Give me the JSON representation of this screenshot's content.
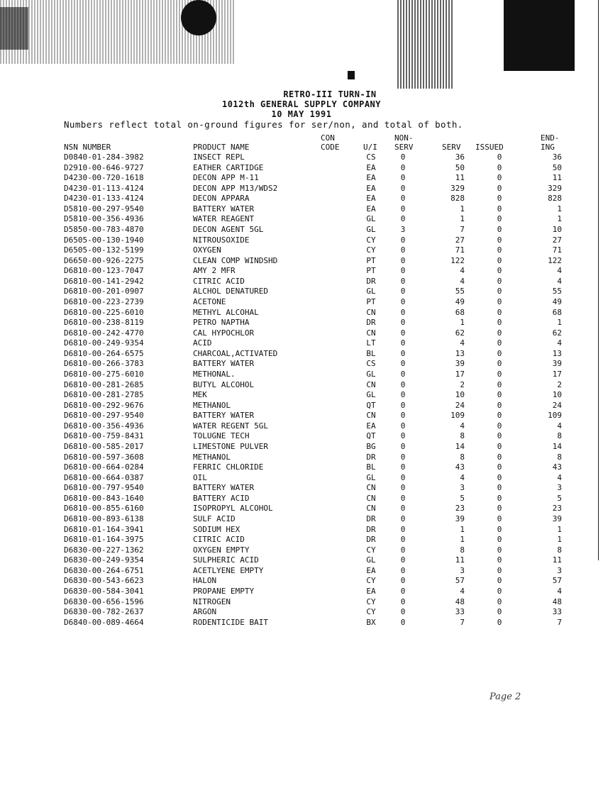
{
  "header": {
    "line1": "RETRO-III TURN-IN",
    "line2": "1012th GENERAL SUPPLY COMPANY",
    "line3": "10 MAY 1991"
  },
  "note": "Numbers reflect total on-ground figures for ser/non, and total of both.",
  "columns": {
    "nsn": "NSN NUMBER",
    "name": "PRODUCT NAME",
    "con_code": [
      "CON",
      "CODE"
    ],
    "ui": "U/I",
    "non_serv": [
      "NON-",
      "SERV"
    ],
    "serv": "SERV",
    "issued": "ISSUED",
    "ending": [
      "END-",
      "ING"
    ]
  },
  "rows": [
    [
      "D0840-01-284-3982",
      "INSECT REPL",
      "CS",
      "0",
      "36",
      "0",
      "36"
    ],
    [
      "D2910-00-646-9727",
      "EATHER CARTIDGE",
      "EA",
      "0",
      "50",
      "0",
      "50"
    ],
    [
      "D4230-00-720-1618",
      "DECON APP M-11",
      "EA",
      "0",
      "11",
      "0",
      "11"
    ],
    [
      "D4230-01-113-4124",
      "DECON APP M13/WDS2",
      "EA",
      "0",
      "329",
      "0",
      "329"
    ],
    [
      "D4230-01-133-4124",
      "DECON APPARA",
      "EA",
      "0",
      "828",
      "0",
      "828"
    ],
    [
      "D5810-00-297-9540",
      "BATTERY WATER",
      "EA",
      "0",
      "1",
      "0",
      "1"
    ],
    [
      "D5810-00-356-4936",
      "WATER REAGENT",
      "GL",
      "0",
      "1",
      "0",
      "1"
    ],
    [
      "D5850-00-783-4870",
      "DECON AGENT 5GL",
      "GL",
      "3",
      "7",
      "0",
      "10"
    ],
    [
      "D6505-00-130-1940",
      "NITROUSOXIDE",
      "CY",
      "0",
      "27",
      "0",
      "27"
    ],
    [
      "D6505-00-132-5199",
      "OXYGEN",
      "CY",
      "0",
      "71",
      "0",
      "71"
    ],
    [
      "D6650-00-926-2275",
      "CLEAN COMP WINDSHD",
      "PT",
      "0",
      "122",
      "0",
      "122"
    ],
    [
      "D6810-00-123-7047",
      "AMY 2 MFR",
      "PT",
      "0",
      "4",
      "0",
      "4"
    ],
    [
      "D6810-00-141-2942",
      "CITRIC ACID",
      "DR",
      "0",
      "4",
      "0",
      "4"
    ],
    [
      "D6810-00-201-0907",
      "ALCHOL DENATURED",
      "GL",
      "0",
      "55",
      "0",
      "55"
    ],
    [
      "D6810-00-223-2739",
      "ACETONE",
      "PT",
      "0",
      "49",
      "0",
      "49"
    ],
    [
      "D6810-00-225-6010",
      "METHYL ALCOHAL",
      "CN",
      "0",
      "68",
      "0",
      "68"
    ],
    [
      "D6810-00-238-8119",
      "PETRO NAPTHA",
      "DR",
      "0",
      "1",
      "0",
      "1"
    ],
    [
      "D6810-00-242-4770",
      "CAL HYPOCHLOR",
      "CN",
      "0",
      "62",
      "0",
      "62"
    ],
    [
      "D6810-00-249-9354",
      "ACID",
      "LT",
      "0",
      "4",
      "0",
      "4"
    ],
    [
      "D6810-00-264-6575",
      "CHARCOAL,ACTIVATED",
      "BL",
      "0",
      "13",
      "0",
      "13"
    ],
    [
      "D6810-00-266-3783",
      "BATTERY WATER",
      "CS",
      "0",
      "39",
      "0",
      "39"
    ],
    [
      "D6810-00-275-6010",
      "METHONAL.",
      "GL",
      "0",
      "17",
      "0",
      "17"
    ],
    [
      "D6810-00-281-2685",
      "BUTYL ALCOHOL",
      "CN",
      "0",
      "2",
      "0",
      "2"
    ],
    [
      "D6810-00-281-2785",
      "MEK",
      "GL",
      "0",
      "10",
      "0",
      "10"
    ],
    [
      "D6810-00-292-9676",
      "METHANOL",
      "QT",
      "0",
      "24",
      "0",
      "24"
    ],
    [
      "D6810-00-297-9540",
      "BATTERY WATER",
      "CN",
      "0",
      "109",
      "0",
      "109"
    ],
    [
      "D6810-00-356-4936",
      "WATER REGENT 5GL",
      "EA",
      "0",
      "4",
      "0",
      "4"
    ],
    [
      "D6810-00-759-8431",
      "TOLUGNE TECH",
      "QT",
      "0",
      "8",
      "0",
      "8"
    ],
    [
      "D6810-00-585-2017",
      "LIMESTONE PULVER",
      "BG",
      "0",
      "14",
      "0",
      "14"
    ],
    [
      "D6810-00-597-3608",
      "METHANOL",
      "DR",
      "0",
      "8",
      "0",
      "8"
    ],
    [
      "D6810-00-664-0284",
      "FERRIC CHLORIDE",
      "BL",
      "0",
      "43",
      "0",
      "43"
    ],
    [
      "D6810-00-664-0387",
      "OIL",
      "GL",
      "0",
      "4",
      "0",
      "4"
    ],
    [
      "D6810-00-797-9540",
      "BATTERY WATER",
      "CN",
      "0",
      "3",
      "0",
      "3"
    ],
    [
      "D6810-00-843-1640",
      "BATTERY ACID",
      "CN",
      "0",
      "5",
      "0",
      "5"
    ],
    [
      "D6810-00-855-6160",
      "ISOPROPYL ALCOHOL",
      "CN",
      "0",
      "23",
      "0",
      "23"
    ],
    [
      "D6810-00-893-6138",
      "SULF ACID",
      "DR",
      "0",
      "39",
      "0",
      "39"
    ],
    [
      "D6810-01-164-3941",
      "SODIUM HEX",
      "DR",
      "0",
      "1",
      "0",
      "1"
    ],
    [
      "D6810-01-164-3975",
      "CITRIC ACID",
      "DR",
      "0",
      "1",
      "0",
      "1"
    ],
    [
      "D6830-00-227-1362",
      "OXYGEN EMPTY",
      "CY",
      "0",
      "8",
      "0",
      "8"
    ],
    [
      "D6830-00-249-9354",
      "SULPHERIC ACID",
      "GL",
      "0",
      "11",
      "0",
      "11"
    ],
    [
      "D6830-00-264-6751",
      "ACETLYENE EMPTY",
      "EA",
      "0",
      "3",
      "0",
      "3"
    ],
    [
      "D6830-00-543-6623",
      "HALON",
      "CY",
      "0",
      "57",
      "0",
      "57"
    ],
    [
      "D6830-00-584-3041",
      "PROPANE EMPTY",
      "EA",
      "0",
      "4",
      "0",
      "4"
    ],
    [
      "D6830-00-656-1596",
      "NITROGEN",
      "CY",
      "0",
      "48",
      "0",
      "48"
    ],
    [
      "D6830-00-782-2637",
      "ARGON",
      "CY",
      "0",
      "33",
      "0",
      "33"
    ],
    [
      "D6840-00-089-4664",
      "RODENTICIDE BAIT",
      "BX",
      "0",
      "7",
      "0",
      "7"
    ]
  ],
  "page_note": "Page 2"
}
